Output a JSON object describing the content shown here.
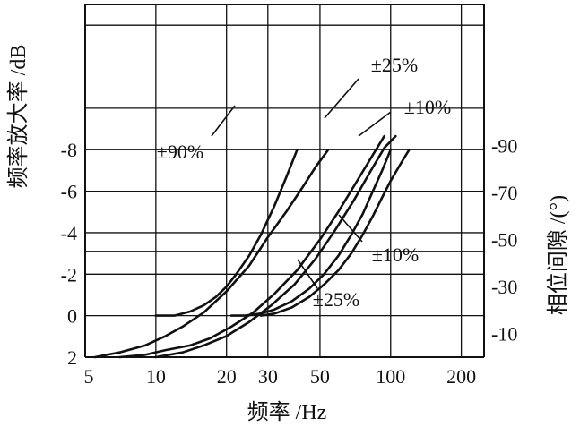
{
  "chart_data": {
    "type": "line",
    "title": "",
    "xlabel": "频率 /Hz",
    "ylabel_left": "频率放大率 /dB",
    "ylabel_right": "相位间隙 /(°)",
    "x_scale": "log",
    "xlim": [
      5,
      250
    ],
    "x_ticks": [
      5,
      10,
      20,
      30,
      50,
      100,
      200
    ],
    "x_tick_labels": [
      "5",
      "10",
      "20",
      "30",
      "50",
      "100",
      "200"
    ],
    "ylim_left": [
      -15,
      2
    ],
    "y_left_ticks": [
      2,
      0,
      -2,
      -4,
      -6,
      -8
    ],
    "y_left_tick_labels": [
      "2",
      "0",
      "-2",
      "-4",
      "-6",
      "-8"
    ],
    "ylim_right": [
      0,
      -150
    ],
    "y_right_ticks": [
      -90,
      -70,
      -50,
      -30,
      -10
    ],
    "y_right_tick_labels": [
      "-90",
      "-70",
      "-50",
      "-30",
      "-10"
    ],
    "grid": true,
    "gridlines_left_y": [
      2,
      0,
      -2,
      -3.1,
      -4,
      -6,
      -8,
      -10,
      -14,
      -15
    ],
    "series": [
      {
        "axis": "left",
        "x": [
          10,
          12,
          14,
          16,
          18,
          20,
          22,
          25,
          28,
          32,
          36,
          40
        ],
        "y": [
          0,
          0,
          -0.2,
          -0.5,
          -0.9,
          -1.4,
          -2.0,
          -2.9,
          -3.9,
          -5.3,
          -6.7,
          -8.0
        ]
      },
      {
        "axis": "left",
        "x": [
          21,
          24,
          28,
          32,
          38,
          45,
          52,
          60,
          68,
          76,
          84,
          92,
          100
        ],
        "y": [
          0,
          0,
          -0.1,
          -0.3,
          -0.7,
          -1.3,
          -2.0,
          -2.9,
          -3.9,
          -4.9,
          -6.0,
          -7.0,
          -8.0
        ]
      },
      {
        "axis": "left",
        "x": [
          28,
          32,
          38,
          45,
          52,
          60,
          68,
          76,
          84,
          92,
          100,
          110,
          120
        ],
        "y": [
          0,
          -0.1,
          -0.4,
          -0.9,
          -1.5,
          -2.2,
          -3.0,
          -3.9,
          -4.8,
          -5.7,
          -6.5,
          -7.3,
          -8.0
        ]
      },
      {
        "axis": "right",
        "x": [
          5.5,
          7,
          9,
          11,
          13,
          16,
          20,
          25,
          30,
          36,
          42,
          48,
          54
        ],
        "y": [
          0,
          -2,
          -5,
          -9,
          -13,
          -19,
          -28,
          -39,
          -51,
          -62,
          -72,
          -81,
          -88
        ]
      },
      {
        "axis": "right",
        "x": [
          7,
          9,
          11,
          14,
          17,
          21,
          26,
          32,
          40,
          50,
          60,
          72,
          84,
          94
        ],
        "y": [
          0,
          -1,
          -3,
          -5,
          -8,
          -13,
          -19,
          -27,
          -37,
          -50,
          -62,
          -75,
          -86,
          -94
        ]
      },
      {
        "axis": "right",
        "x": [
          10,
          13,
          16,
          20,
          25,
          31,
          39,
          48,
          58,
          70,
          82,
          94,
          105
        ],
        "y": [
          0,
          -2,
          -5,
          -9,
          -15,
          -22,
          -31,
          -42,
          -54,
          -67,
          -79,
          -89,
          -94
        ]
      }
    ],
    "annotations": [
      "±25%",
      "±10%",
      "±90%",
      "±10%",
      "±25%"
    ]
  }
}
